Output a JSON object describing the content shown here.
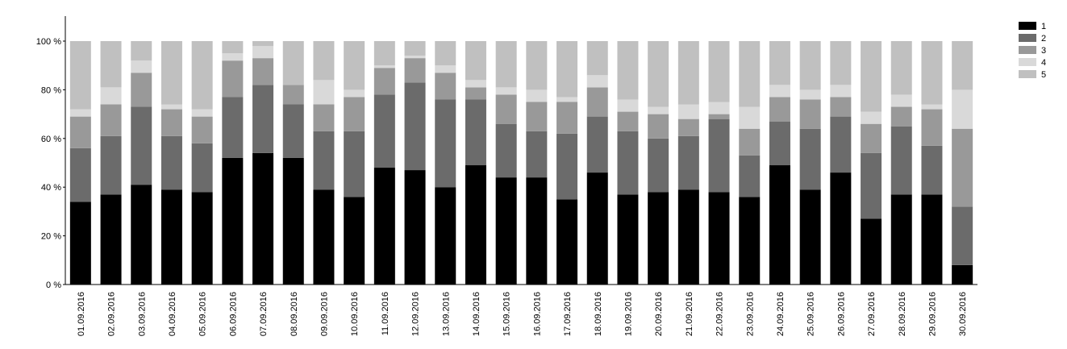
{
  "chart_data": {
    "type": "stacked-bar-100",
    "categories": [
      "01.09.2016",
      "02.09.2016",
      "03.09.2016",
      "04.09.2016",
      "05.09.2016",
      "06.09.2016",
      "07.09.2016",
      "08.09.2016",
      "09.09.2016",
      "10.09.2016",
      "11.09.2016",
      "12.09.2016",
      "13.09.2016",
      "14.09.2016",
      "15.09.2016",
      "16.09.2016",
      "17.09.2016",
      "18.09.2016",
      "19.09.2016",
      "20.09.2016",
      "21.09.2016",
      "22.09.2016",
      "23.09.2016",
      "24.09.2016",
      "25.09.2016",
      "26.09.2016",
      "27.09.2016",
      "28.09.2016",
      "29.09.2016",
      "30.09.2016"
    ],
    "series": [
      {
        "name": "1",
        "color": "#000000",
        "values": [
          34,
          37,
          41,
          39,
          38,
          52,
          54,
          52,
          39,
          36,
          48,
          47,
          40,
          49,
          44,
          44,
          35,
          46,
          37,
          38,
          39,
          38,
          36,
          49,
          39,
          46,
          27,
          37,
          37,
          8
        ]
      },
      {
        "name": "2",
        "color": "#6b6b6b",
        "values": [
          22,
          24,
          32,
          22,
          20,
          25,
          28,
          22,
          24,
          27,
          30,
          36,
          36,
          27,
          22,
          19,
          27,
          23,
          26,
          22,
          22,
          30,
          17,
          18,
          25,
          23,
          27,
          28,
          20,
          24
        ]
      },
      {
        "name": "3",
        "color": "#999999",
        "values": [
          13,
          13,
          14,
          11,
          11,
          15,
          11,
          8,
          11,
          14,
          11,
          10,
          11,
          5,
          12,
          12,
          13,
          12,
          8,
          10,
          7,
          2,
          11,
          10,
          12,
          8,
          12,
          8,
          15,
          32
        ]
      },
      {
        "name": "4",
        "color": "#d9d9d9",
        "values": [
          3,
          7,
          5,
          2,
          3,
          3,
          5,
          0,
          10,
          3,
          1,
          1,
          3,
          3,
          3,
          5,
          2,
          5,
          5,
          3,
          6,
          5,
          9,
          5,
          4,
          5,
          5,
          5,
          2,
          16
        ]
      },
      {
        "name": "5",
        "color": "#c0c0c0",
        "values": [
          28,
          19,
          8,
          26,
          28,
          5,
          2,
          18,
          16,
          20,
          10,
          6,
          10,
          16,
          19,
          20,
          23,
          14,
          24,
          27,
          26,
          25,
          27,
          18,
          20,
          18,
          29,
          22,
          26,
          20
        ]
      }
    ],
    "ylim": [
      0,
      110
    ],
    "yticks": [
      {
        "value": 0,
        "label": "0 %"
      },
      {
        "value": 20,
        "label": "20 %"
      },
      {
        "value": 40,
        "label": "40 %"
      },
      {
        "value": 60,
        "label": "60 %"
      },
      {
        "value": 80,
        "label": "80 %"
      },
      {
        "value": 100,
        "label": "100 %"
      }
    ],
    "legend": "top-right"
  }
}
